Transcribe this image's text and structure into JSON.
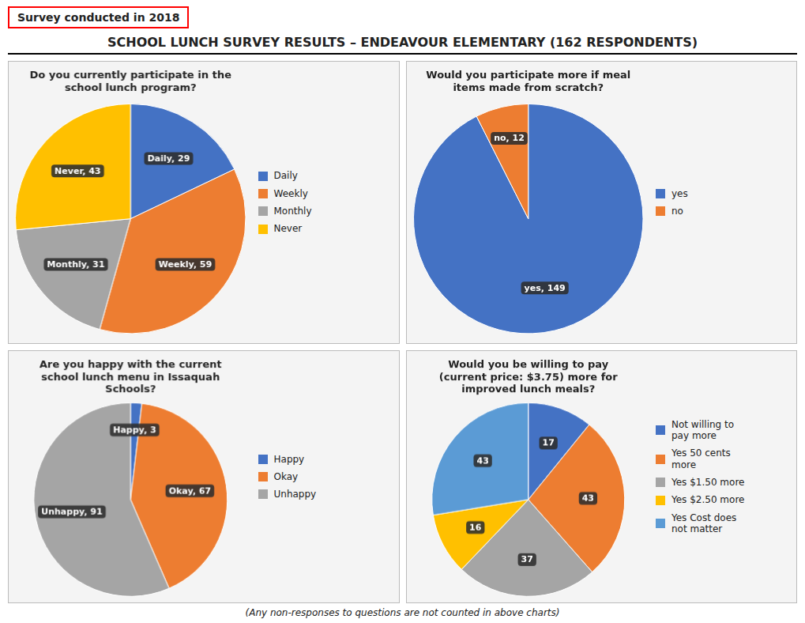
{
  "title": "SCHOOL LUNCH SURVEY RESULTS – ENDEAVOUR ELEMENTARY (162 RESPONDENTS)",
  "subtitle": "Survey conducted in 2018",
  "annotations": [
    "(Any non-responses to questions are not counted in above charts)"
  ],
  "chart_data": [
    {
      "type": "pie",
      "title": "Do you currently participate in the\nschool lunch program?",
      "categories": [
        "Daily",
        "Weekly",
        "Monthly",
        "Never"
      ],
      "values": [
        29,
        59,
        31,
        43
      ],
      "value_labels": [
        "Daily, 29",
        "Weekly, 59",
        "Monthly, 31",
        "Never, 43"
      ],
      "colors": [
        "#4472c4",
        "#ed7d31",
        "#a5a5a5",
        "#ffc000"
      ],
      "data_labels": true,
      "legend": "right"
    },
    {
      "type": "pie",
      "title": "Would you participate more if meal\nitems made from scratch?",
      "categories": [
        "yes",
        "no"
      ],
      "values": [
        149,
        12
      ],
      "value_labels": [
        "yes, 149",
        "no, 12"
      ],
      "colors": [
        "#4472c4",
        "#ed7d31"
      ],
      "data_labels": true,
      "legend": "right"
    },
    {
      "type": "pie",
      "title": "Are you happy with the current\nschool lunch menu in Issaquah\nSchools?",
      "categories": [
        "Happy",
        "Okay",
        "Unhappy"
      ],
      "values": [
        3,
        67,
        91
      ],
      "value_labels": [
        "Happy, 3",
        "Okay, 67",
        "Unhappy, 91"
      ],
      "colors": [
        "#4472c4",
        "#ed7d31",
        "#a5a5a5"
      ],
      "data_labels": true,
      "legend": "right"
    },
    {
      "type": "pie",
      "title": "Would you be willing to pay\n(current price: $3.75) more for\nimproved lunch meals?",
      "categories": [
        "Not willing to\npay more",
        "Yes 50 cents\nmore",
        "Yes $1.50 more",
        "Yes $2.50 more",
        "Yes Cost does\nnot matter"
      ],
      "values": [
        17,
        43,
        37,
        16,
        43
      ],
      "colors": [
        "#4472c4",
        "#ed7d31",
        "#a5a5a5",
        "#ffc000",
        "#5b9bd5"
      ],
      "data_labels": true,
      "legend": "right"
    }
  ]
}
